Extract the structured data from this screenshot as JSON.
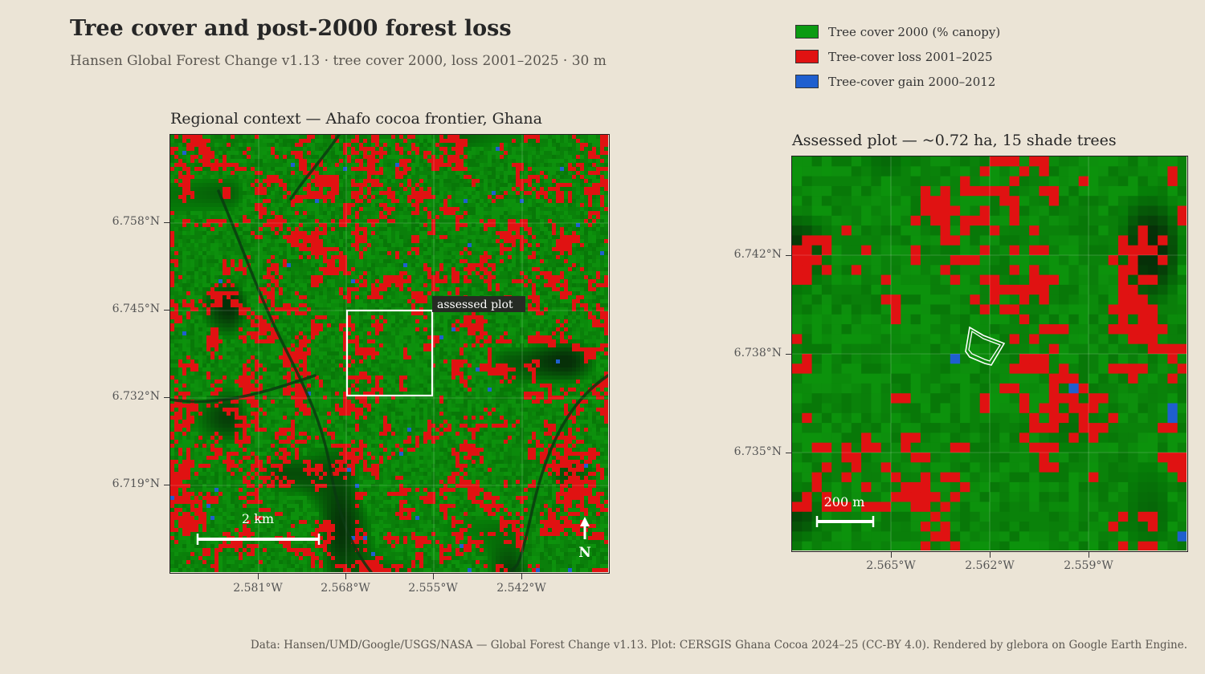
{
  "title": "Tree cover and post-2000 forest loss",
  "subtitle": "Hansen Global Forest Change v1.13  ·  tree cover 2000, loss 2001–2025  ·  30 m",
  "legend": [
    {
      "label": "Tree cover 2000 (% canopy)",
      "color": "#0b9b12"
    },
    {
      "label": "Tree-cover loss 2001–2025",
      "color": "#e01212"
    },
    {
      "label": "Tree-cover gain 2000–2012",
      "color": "#1f5fcf"
    }
  ],
  "left_map": {
    "title": "Regional context — Ahafo cocoa frontier, Ghana",
    "lat_ticks": [
      "6.758°N",
      "6.745°N",
      "6.732°N",
      "6.719°N"
    ],
    "lon_ticks": [
      "2.581°W",
      "2.568°W",
      "2.555°W",
      "2.542°W"
    ],
    "plot_label": "assessed plot",
    "scale_label": "2 km",
    "north_label": "N"
  },
  "right_map": {
    "title": "Assessed plot — ~0.72 ha, 15 shade trees",
    "lat_ticks": [
      "6.742°N",
      "6.738°N",
      "6.735°N"
    ],
    "lon_ticks": [
      "2.565°W",
      "2.562°W",
      "2.559°W"
    ],
    "scale_label": "200 m"
  },
  "footer": "Data: Hansen/UMD/Google/USGS/NASA — Global Forest Change v1.13. Plot: CERSGIS Ghana Cocoa 2024–25 (CC-BY 4.0). Rendered by glebora on Google Earth Engine.",
  "colors": {
    "background": "#ebe4d6",
    "forest": "#0b7d0b",
    "dark_forest": "#063d08",
    "loss": "#e01212",
    "gain": "#1f5fcf"
  }
}
